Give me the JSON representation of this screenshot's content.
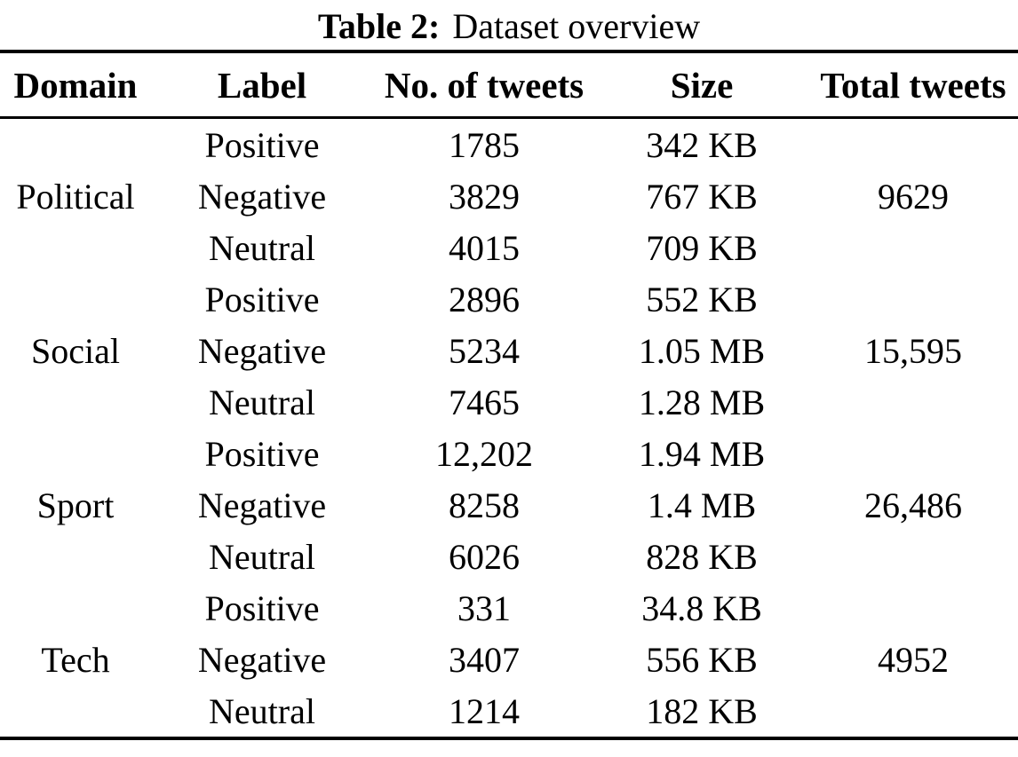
{
  "caption": {
    "label": "Table 2:",
    "text": "Dataset overview"
  },
  "table": {
    "headers": [
      "Domain",
      "Label",
      "No. of tweets",
      "Size",
      "Total tweets"
    ],
    "groups": [
      {
        "domain": "Political",
        "total": "9629",
        "rows": [
          {
            "label": "Positive",
            "count": "1785",
            "size": "342 KB"
          },
          {
            "label": "Negative",
            "count": "3829",
            "size": "767 KB"
          },
          {
            "label": "Neutral",
            "count": "4015",
            "size": "709 KB"
          }
        ]
      },
      {
        "domain": "Social",
        "total": "15,595",
        "rows": [
          {
            "label": "Positive",
            "count": "2896",
            "size": "552 KB"
          },
          {
            "label": "Negative",
            "count": "5234",
            "size": "1.05 MB"
          },
          {
            "label": "Neutral",
            "count": "7465",
            "size": "1.28 MB"
          }
        ]
      },
      {
        "domain": "Sport",
        "total": "26,486",
        "rows": [
          {
            "label": "Positive",
            "count": "12,202",
            "size": "1.94 MB"
          },
          {
            "label": "Negative",
            "count": "8258",
            "size": "1.4 MB"
          },
          {
            "label": "Neutral",
            "count": "6026",
            "size": "828 KB"
          }
        ]
      },
      {
        "domain": "Tech",
        "total": "4952",
        "rows": [
          {
            "label": "Positive",
            "count": "331",
            "size": "34.8 KB"
          },
          {
            "label": "Negative",
            "count": "3407",
            "size": "556 KB"
          },
          {
            "label": "Neutral",
            "count": "1214",
            "size": "182 KB"
          }
        ]
      }
    ]
  }
}
